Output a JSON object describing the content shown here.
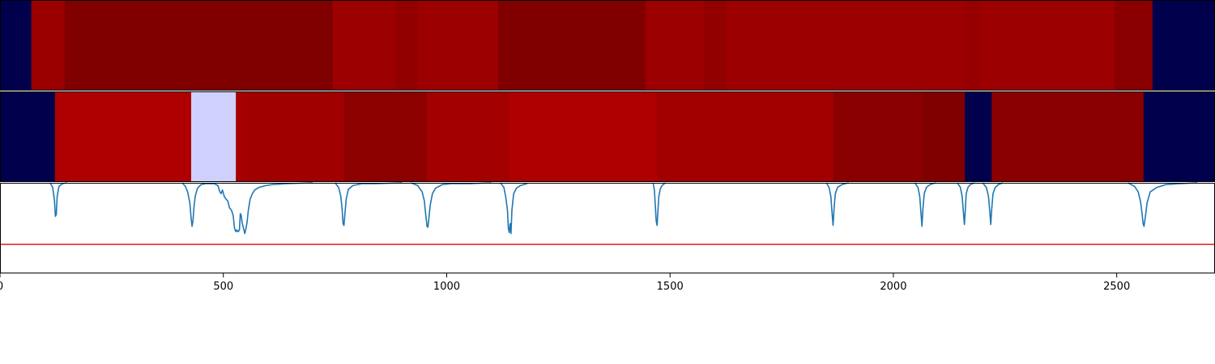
{
  "chart_data": [
    {
      "type": "heatmap",
      "panel": "top-strip",
      "xlim": [
        0,
        2720
      ],
      "segments": [
        {
          "start": 0,
          "end": 70,
          "color": "#00004c"
        },
        {
          "start": 70,
          "end": 145,
          "color": "#9a0000"
        },
        {
          "start": 145,
          "end": 745,
          "color": "#800000"
        },
        {
          "start": 745,
          "end": 885,
          "color": "#9c0000"
        },
        {
          "start": 885,
          "end": 935,
          "color": "#920000"
        },
        {
          "start": 935,
          "end": 1115,
          "color": "#9d0000"
        },
        {
          "start": 1115,
          "end": 1445,
          "color": "#800000"
        },
        {
          "start": 1445,
          "end": 1575,
          "color": "#9c0000"
        },
        {
          "start": 1575,
          "end": 1625,
          "color": "#920000"
        },
        {
          "start": 1625,
          "end": 2160,
          "color": "#9d0000"
        },
        {
          "start": 2160,
          "end": 2195,
          "color": "#960000"
        },
        {
          "start": 2195,
          "end": 2495,
          "color": "#9d0000"
        },
        {
          "start": 2495,
          "end": 2580,
          "color": "#8a0000"
        },
        {
          "start": 2580,
          "end": 2720,
          "color": "#00004c"
        }
      ]
    },
    {
      "type": "heatmap",
      "panel": "middle-strip",
      "xlim": [
        0,
        2720
      ],
      "segments": [
        {
          "start": 0,
          "end": 123,
          "color": "#00004c"
        },
        {
          "start": 123,
          "end": 428,
          "color": "#ae0000"
        },
        {
          "start": 428,
          "end": 528,
          "color": "#d0d0ff"
        },
        {
          "start": 528,
          "end": 555,
          "color": "#a50000"
        },
        {
          "start": 555,
          "end": 770,
          "color": "#a00000"
        },
        {
          "start": 770,
          "end": 955,
          "color": "#8c0000"
        },
        {
          "start": 955,
          "end": 1140,
          "color": "#a30000"
        },
        {
          "start": 1140,
          "end": 1470,
          "color": "#ae0000"
        },
        {
          "start": 1470,
          "end": 1865,
          "color": "#a20000"
        },
        {
          "start": 1865,
          "end": 2065,
          "color": "#8a0000"
        },
        {
          "start": 2065,
          "end": 2160,
          "color": "#800000"
        },
        {
          "start": 2160,
          "end": 2220,
          "color": "#00004c"
        },
        {
          "start": 2220,
          "end": 2560,
          "color": "#8a0000"
        },
        {
          "start": 2560,
          "end": 2720,
          "color": "#00004c"
        }
      ]
    },
    {
      "type": "line",
      "panel": "bottom-signal",
      "xlim": [
        0,
        2720
      ],
      "ylim": [
        -1.0,
        0.0
      ],
      "x_ticks": [
        "0",
        "500",
        "1000",
        "1500",
        "2000",
        "2500"
      ],
      "x_tick_values": [
        0,
        500,
        1000,
        1500,
        2000,
        2500
      ],
      "threshold": {
        "value": -0.68,
        "color": "#e41a1c"
      },
      "series": [
        {
          "color": "#1f77b4",
          "segments": [
            {
              "x": [
                112,
                118,
                122,
                124,
                126,
                128,
                132,
                140,
                150
              ],
              "y": [
                0.0,
                -0.05,
                -0.2,
                -0.37,
                -0.35,
                -0.15,
                -0.04,
                -0.01,
                0.0
              ]
            },
            {
              "x": [
                408,
                415,
                420,
                425,
                428,
                430,
                432,
                434,
                437,
                442,
                450,
                460,
                470,
                480,
                488,
                492,
                495,
                498,
                502,
                506,
                510,
                514,
                518,
                522,
                525,
                528,
                530,
                533,
                536,
                538,
                540,
                542,
                545,
                548,
                550,
                553,
                556,
                560,
                565,
                570,
                580,
                595,
                610,
                640,
                700
              ],
              "y": [
                0.0,
                -0.04,
                -0.1,
                -0.22,
                -0.4,
                -0.48,
                -0.42,
                -0.28,
                -0.15,
                -0.06,
                -0.02,
                -0.01,
                -0.01,
                -0.01,
                -0.03,
                -0.1,
                -0.12,
                -0.08,
                -0.15,
                -0.18,
                -0.2,
                -0.28,
                -0.3,
                -0.36,
                -0.5,
                -0.54,
                -0.52,
                -0.54,
                -0.52,
                -0.34,
                -0.36,
                -0.44,
                -0.5,
                -0.56,
                -0.52,
                -0.44,
                -0.3,
                -0.18,
                -0.12,
                -0.08,
                -0.05,
                -0.03,
                -0.02,
                -0.01,
                0.0
              ]
            },
            {
              "x": [
                750,
                758,
                763,
                766,
                768,
                770,
                772,
                775,
                780,
                790,
                810,
                840,
                900
              ],
              "y": [
                0.0,
                -0.05,
                -0.15,
                -0.3,
                -0.45,
                -0.47,
                -0.35,
                -0.18,
                -0.07,
                -0.03,
                -0.01,
                -0.01,
                0.0
              ]
            },
            {
              "x": [
                920,
                935,
                945,
                950,
                953,
                956,
                958,
                960,
                963,
                968,
                975,
                990,
                1010,
                1050,
                1100
              ],
              "y": [
                0.0,
                -0.03,
                -0.1,
                -0.2,
                -0.35,
                -0.48,
                -0.49,
                -0.4,
                -0.25,
                -0.12,
                -0.06,
                -0.02,
                -0.01,
                -0.01,
                0.0
              ]
            },
            {
              "x": [
                1120,
                1128,
                1132,
                1136,
                1138,
                1140,
                1142,
                1144,
                1146,
                1150,
                1156,
                1165,
                1180
              ],
              "y": [
                0.0,
                -0.05,
                -0.15,
                -0.3,
                -0.5,
                -0.55,
                -0.45,
                -0.56,
                -0.3,
                -0.12,
                -0.06,
                -0.03,
                -0.01
              ]
            },
            {
              "x": [
                1462,
                1465,
                1467,
                1469,
                1471,
                1473,
                1475,
                1478,
                1482,
                1490
              ],
              "y": [
                0.0,
                -0.08,
                -0.25,
                -0.42,
                -0.47,
                -0.3,
                -0.15,
                -0.07,
                -0.03,
                0.0
              ]
            },
            {
              "x": [
                1850,
                1856,
                1860,
                1863,
                1865,
                1867,
                1870,
                1875,
                1885,
                1900
              ],
              "y": [
                0.0,
                -0.05,
                -0.15,
                -0.35,
                -0.47,
                -0.3,
                -0.12,
                -0.05,
                -0.02,
                0.0
              ]
            },
            {
              "x": [
                2048,
                2055,
                2059,
                2062,
                2064,
                2066,
                2069,
                2074,
                2082,
                2095
              ],
              "y": [
                0.0,
                -0.05,
                -0.15,
                -0.35,
                -0.48,
                -0.3,
                -0.12,
                -0.05,
                -0.02,
                0.0
              ]
            },
            {
              "x": [
                2143,
                2150,
                2154,
                2157,
                2159,
                2161,
                2163,
                2167,
                2172,
                2182
              ],
              "y": [
                0.0,
                -0.05,
                -0.15,
                -0.34,
                -0.46,
                -0.3,
                -0.12,
                -0.05,
                -0.02,
                0.0
              ]
            },
            {
              "x": [
                2200,
                2208,
                2213,
                2216,
                2218,
                2220,
                2223,
                2228,
                2235,
                2245
              ],
              "y": [
                0.0,
                -0.05,
                -0.15,
                -0.33,
                -0.46,
                -0.3,
                -0.12,
                -0.05,
                -0.02,
                0.0
              ]
            },
            {
              "x": [
                2525,
                2540,
                2548,
                2553,
                2557,
                2559,
                2561,
                2564,
                2568,
                2575,
                2590,
                2610,
                2640,
                2680
              ],
              "y": [
                0.0,
                -0.04,
                -0.1,
                -0.2,
                -0.35,
                -0.45,
                -0.48,
                -0.38,
                -0.22,
                -0.1,
                -0.05,
                -0.02,
                -0.01,
                0.0
              ]
            }
          ]
        }
      ]
    }
  ]
}
